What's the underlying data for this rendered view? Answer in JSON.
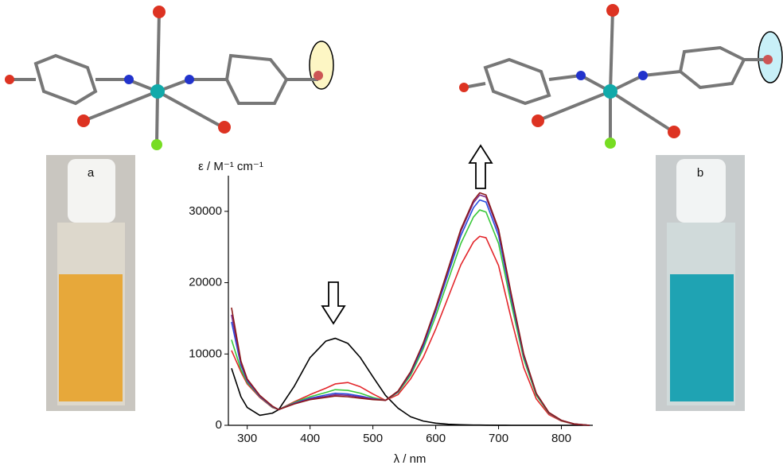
{
  "chart_data": {
    "type": "line",
    "y_label": "ε / M⁻¹ cm⁻¹",
    "x_label": "λ / nm",
    "panel_labels": [
      "a",
      "b"
    ],
    "x": [
      275,
      290,
      300,
      320,
      340,
      350,
      375,
      400,
      425,
      440,
      460,
      480,
      500,
      520,
      540,
      560,
      580,
      600,
      620,
      640,
      660,
      670,
      680,
      700,
      720,
      740,
      760,
      780,
      800,
      820,
      845
    ],
    "series": [
      {
        "color": "#000000",
        "values": [
          8000,
          4000,
          2500,
          1400,
          1700,
          2200,
          5500,
          9500,
          11800,
          12200,
          11500,
          9500,
          6800,
          4200,
          2400,
          1200,
          600,
          300,
          150,
          80,
          40,
          30,
          20,
          10,
          0,
          0,
          0,
          0,
          0,
          0,
          0
        ]
      },
      {
        "color": "#e3262b",
        "values": [
          10500,
          7500,
          5800,
          3900,
          2500,
          2200,
          3300,
          4300,
          5200,
          5800,
          6000,
          5400,
          4400,
          3500,
          4300,
          6500,
          9500,
          13500,
          18000,
          22500,
          25700,
          26500,
          26300,
          22400,
          15000,
          8100,
          3700,
          1500,
          600,
          150,
          0
        ]
      },
      {
        "color": "#3ac83a",
        "values": [
          12000,
          7800,
          6000,
          4000,
          2550,
          2200,
          3200,
          4000,
          4600,
          5000,
          4900,
          4500,
          3900,
          3500,
          4600,
          7000,
          10700,
          15300,
          20400,
          25500,
          29200,
          30200,
          29900,
          25500,
          17100,
          9300,
          4200,
          1700,
          650,
          180,
          0
        ]
      },
      {
        "color": "#2a4de0",
        "values": [
          14500,
          8400,
          6200,
          4050,
          2600,
          2200,
          3100,
          3800,
          4250,
          4500,
          4400,
          4100,
          3750,
          3500,
          4700,
          7300,
          11100,
          16000,
          21300,
          26600,
          30500,
          31600,
          31300,
          26600,
          17900,
          9700,
          4400,
          1750,
          680,
          190,
          0
        ]
      },
      {
        "color": "#7a2a8c",
        "values": [
          15500,
          8700,
          6300,
          4100,
          2650,
          2200,
          3050,
          3700,
          4050,
          4300,
          4200,
          3950,
          3700,
          3500,
          4750,
          7400,
          11400,
          16300,
          21800,
          27200,
          31200,
          32300,
          32000,
          27200,
          18300,
          9900,
          4450,
          1780,
          690,
          195,
          0
        ]
      },
      {
        "color": "#8b1a1a",
        "values": [
          16500,
          9000,
          6500,
          4200,
          2700,
          2200,
          3000,
          3600,
          3900,
          4100,
          4000,
          3800,
          3600,
          3500,
          4800,
          7500,
          11500,
          16500,
          22000,
          27500,
          31500,
          32600,
          32300,
          27500,
          18500,
          10000,
          4500,
          1800,
          700,
          200,
          0
        ]
      }
    ],
    "xlim": [
      270,
      850
    ],
    "ylim": [
      0,
      35000
    ],
    "xticks": [
      300,
      400,
      500,
      600,
      700,
      800
    ],
    "yticks": [
      0,
      10000,
      20000,
      30000
    ]
  }
}
